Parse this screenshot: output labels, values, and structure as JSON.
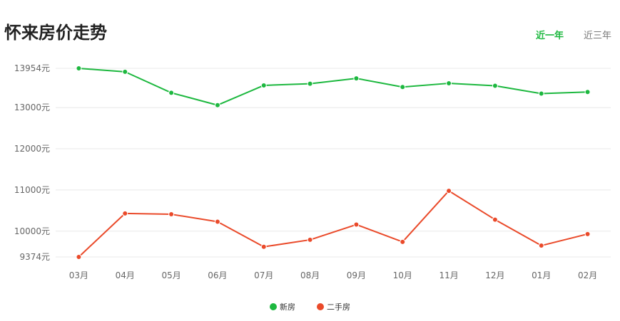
{
  "header": {
    "title": "怀来房价走势"
  },
  "tabs": [
    {
      "label": "近一年",
      "active": true
    },
    {
      "label": "近三年",
      "active": false
    }
  ],
  "colors": {
    "accent": "#1db83f",
    "new": "#1db83f",
    "second": "#ea4a2a"
  },
  "chart_data": {
    "type": "line",
    "title": "怀来房价走势",
    "categories": [
      "03月",
      "04月",
      "05月",
      "06月",
      "07月",
      "08月",
      "09月",
      "10月",
      "11月",
      "12月",
      "01月",
      "02月"
    ],
    "series": [
      {
        "name": "新房",
        "color": "#1db83f",
        "values": [
          13954,
          13870,
          13360,
          13060,
          13540,
          13580,
          13710,
          13500,
          13590,
          13530,
          13340,
          13380
        ]
      },
      {
        "name": "二手房",
        "color": "#ea4a2a",
        "values": [
          9374,
          10430,
          10410,
          10230,
          9620,
          9790,
          10160,
          9740,
          10980,
          10280,
          9650,
          9930
        ]
      }
    ],
    "yticks": [
      {
        "value": 9374,
        "label": "9374元"
      },
      {
        "value": 10000,
        "label": "10000元"
      },
      {
        "value": 11000,
        "label": "11000元"
      },
      {
        "value": 12000,
        "label": "12000元"
      },
      {
        "value": 13000,
        "label": "13000元"
      },
      {
        "value": 13954,
        "label": "13954元"
      }
    ],
    "ylim": [
      9374,
      13954
    ],
    "grid": true,
    "legend_position": "bottom"
  }
}
